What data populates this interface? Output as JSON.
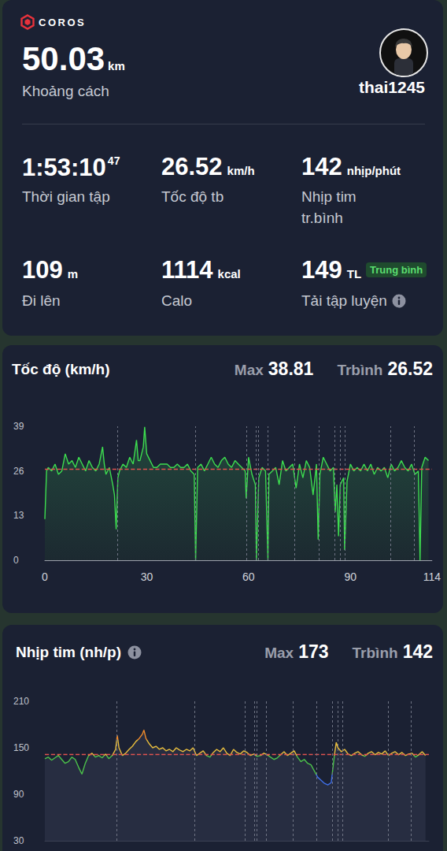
{
  "header": {
    "brand": "COROS",
    "user": "thai1245",
    "distance": {
      "value": 50.03,
      "unit": "km",
      "label": "Khoảng cách"
    },
    "stats": [
      {
        "value": "1:53:10",
        "sup": "47",
        "label": "Thời gian tập"
      },
      {
        "value": 26.52,
        "unit": "km/h",
        "label": "Tốc độ tb"
      },
      {
        "value": 142,
        "unit": "nhịp/phút",
        "label": "Nhịp tim tr.bình"
      },
      {
        "value": 109,
        "unit": "m",
        "label": "Đi lên"
      },
      {
        "value": 1114,
        "unit": "kcal",
        "label": "Calo"
      },
      {
        "value": 149,
        "unit": "TL",
        "badge": "Trung bình",
        "label": "Tải tập luyện",
        "info": true
      }
    ]
  },
  "chart_data": [
    {
      "type": "line",
      "title": "Tốc độ (km/h)",
      "max_label": "Max",
      "max": 38.81,
      "avg_label": "Trbình",
      "avg": 26.52,
      "x": [
        0,
        0.5,
        1,
        2,
        3,
        4,
        5,
        6,
        7,
        8,
        9,
        10,
        11,
        12,
        13,
        14,
        15,
        16,
        17,
        17.5,
        18,
        19,
        20,
        20.5,
        21,
        21.5,
        22,
        23,
        24,
        25,
        26,
        27,
        27.5,
        28,
        29,
        29.4,
        30,
        31,
        32,
        33,
        34,
        35,
        36,
        37,
        38,
        39,
        40,
        41,
        42,
        43,
        44,
        44.4,
        45,
        46,
        47,
        48,
        49,
        50,
        51,
        52,
        53,
        54,
        55,
        56,
        57,
        58,
        59,
        59.3,
        60,
        61,
        62,
        62.3,
        63,
        64,
        65,
        65.7,
        66,
        67,
        68,
        69,
        70,
        71,
        72,
        73,
        74,
        75,
        76,
        77,
        78,
        79,
        80,
        80.5,
        81,
        82,
        83,
        84,
        85,
        85.5,
        86,
        86.5,
        87,
        88,
        88.3,
        89,
        90,
        91,
        92,
        93,
        94,
        95,
        96,
        97,
        98,
        99,
        100,
        101,
        102,
        103,
        104,
        105,
        106,
        107,
        108,
        109,
        110,
        110.5,
        111,
        112,
        113
      ],
      "values": [
        12,
        26,
        27,
        26,
        28,
        25,
        26,
        31,
        28,
        29,
        27,
        30,
        28,
        26,
        29,
        27,
        26,
        28,
        33,
        28,
        25,
        27,
        22,
        19,
        9,
        24,
        26,
        28,
        27,
        30,
        28,
        35,
        29,
        29,
        33,
        38.81,
        31,
        29,
        27,
        27,
        28,
        28,
        28,
        27,
        27,
        28,
        27,
        27,
        28,
        26,
        25,
        0,
        27,
        28,
        26,
        28,
        30,
        28,
        27,
        29,
        30,
        28,
        27,
        29,
        28,
        27,
        26,
        18,
        30,
        25,
        22,
        0,
        24,
        27,
        26,
        0,
        25,
        26,
        27,
        22,
        29,
        26,
        27,
        28,
        21,
        28,
        24,
        29,
        27,
        19,
        28,
        6,
        25,
        30,
        28,
        26,
        27,
        14,
        22,
        7,
        22,
        24,
        3,
        23,
        28,
        26,
        27,
        26,
        28,
        26,
        28,
        25,
        27,
        26,
        27,
        24,
        28,
        26,
        27,
        29,
        27,
        26,
        28,
        25,
        26,
        0,
        27,
        30,
        29
      ],
      "color": "#3ddc4f",
      "xlim": [
        0,
        114
      ],
      "xticks": [
        0,
        30,
        60,
        90,
        114
      ],
      "ylim": [
        0,
        39
      ],
      "yticks": [
        0,
        13,
        26,
        39
      ],
      "markers": [
        21.4,
        44.4,
        59.3,
        62.1,
        62.8,
        65.7,
        73.6,
        80.7,
        85.3,
        86.9,
        88.3,
        101.8,
        108.7
      ],
      "grid": false
    },
    {
      "type": "line",
      "title": "Nhịp tim (nh/p)",
      "max_label": "Max",
      "max": 173,
      "avg_label": "Trbình",
      "avg": 142,
      "x": [
        0,
        1,
        2,
        3,
        4,
        5,
        6,
        7,
        8,
        9,
        10,
        11,
        12,
        13,
        14,
        15,
        16,
        17,
        18,
        19,
        20,
        21,
        21.5,
        22,
        23,
        24,
        25,
        26,
        27,
        28,
        29,
        29.4,
        30,
        31,
        32,
        33,
        34,
        35,
        36,
        37,
        38,
        39,
        40,
        41,
        42,
        43,
        44,
        45,
        46,
        47,
        48,
        49,
        50,
        51,
        52,
        53,
        54,
        55,
        56,
        57,
        58,
        59,
        60,
        61,
        62,
        63,
        64,
        65,
        66,
        67,
        68,
        69,
        70,
        71,
        72,
        73,
        74,
        75,
        76,
        77,
        78,
        79,
        80,
        81,
        82,
        83,
        84,
        85,
        86,
        86.5,
        87,
        88,
        89,
        90,
        91,
        92,
        93,
        94,
        95,
        96,
        97,
        98,
        99,
        100,
        101,
        102,
        103,
        104,
        105,
        106,
        107,
        108,
        109,
        110,
        111,
        112,
        113
      ],
      "values": [
        136,
        138,
        134,
        137,
        140,
        135,
        130,
        132,
        138,
        135,
        125,
        116,
        130,
        140,
        143,
        138,
        140,
        137,
        142,
        136,
        140,
        148,
        166,
        150,
        140,
        143,
        148,
        152,
        158,
        162,
        168,
        173,
        162,
        155,
        150,
        152,
        148,
        150,
        146,
        148,
        145,
        150,
        147,
        145,
        148,
        146,
        150,
        140,
        143,
        146,
        140,
        138,
        144,
        148,
        145,
        150,
        143,
        140,
        148,
        144,
        142,
        146,
        144,
        140,
        142,
        139,
        140,
        143,
        141,
        138,
        135,
        137,
        141,
        145,
        140,
        143,
        146,
        138,
        132,
        135,
        130,
        128,
        120,
        112,
        108,
        104,
        102,
        105,
        142,
        157,
        150,
        145,
        148,
        142,
        140,
        143,
        145,
        141,
        139,
        143,
        145,
        141,
        144,
        142,
        146,
        140,
        143,
        145,
        141,
        144,
        140,
        142,
        143,
        138,
        141,
        145,
        140
      ],
      "zones": [
        {
          "max": 115,
          "color": "#3f6fe8"
        },
        {
          "min": 115,
          "max": 140,
          "color": "#4cc24a"
        },
        {
          "min": 140,
          "max": 160,
          "color": "#e8bd3c"
        },
        {
          "min": 160,
          "color": "#f08a2a"
        }
      ],
      "xlim": [
        0,
        114
      ],
      "ylim": [
        30,
        210
      ],
      "yticks": [
        30,
        90,
        150,
        210
      ],
      "markers": [
        21.4,
        44.4,
        59.3,
        62.1,
        62.8,
        65.7,
        73.6,
        80.7,
        85.3,
        86.9,
        88.3,
        101.8,
        108.7
      ],
      "tick_labels": "y",
      "grid": false
    }
  ]
}
